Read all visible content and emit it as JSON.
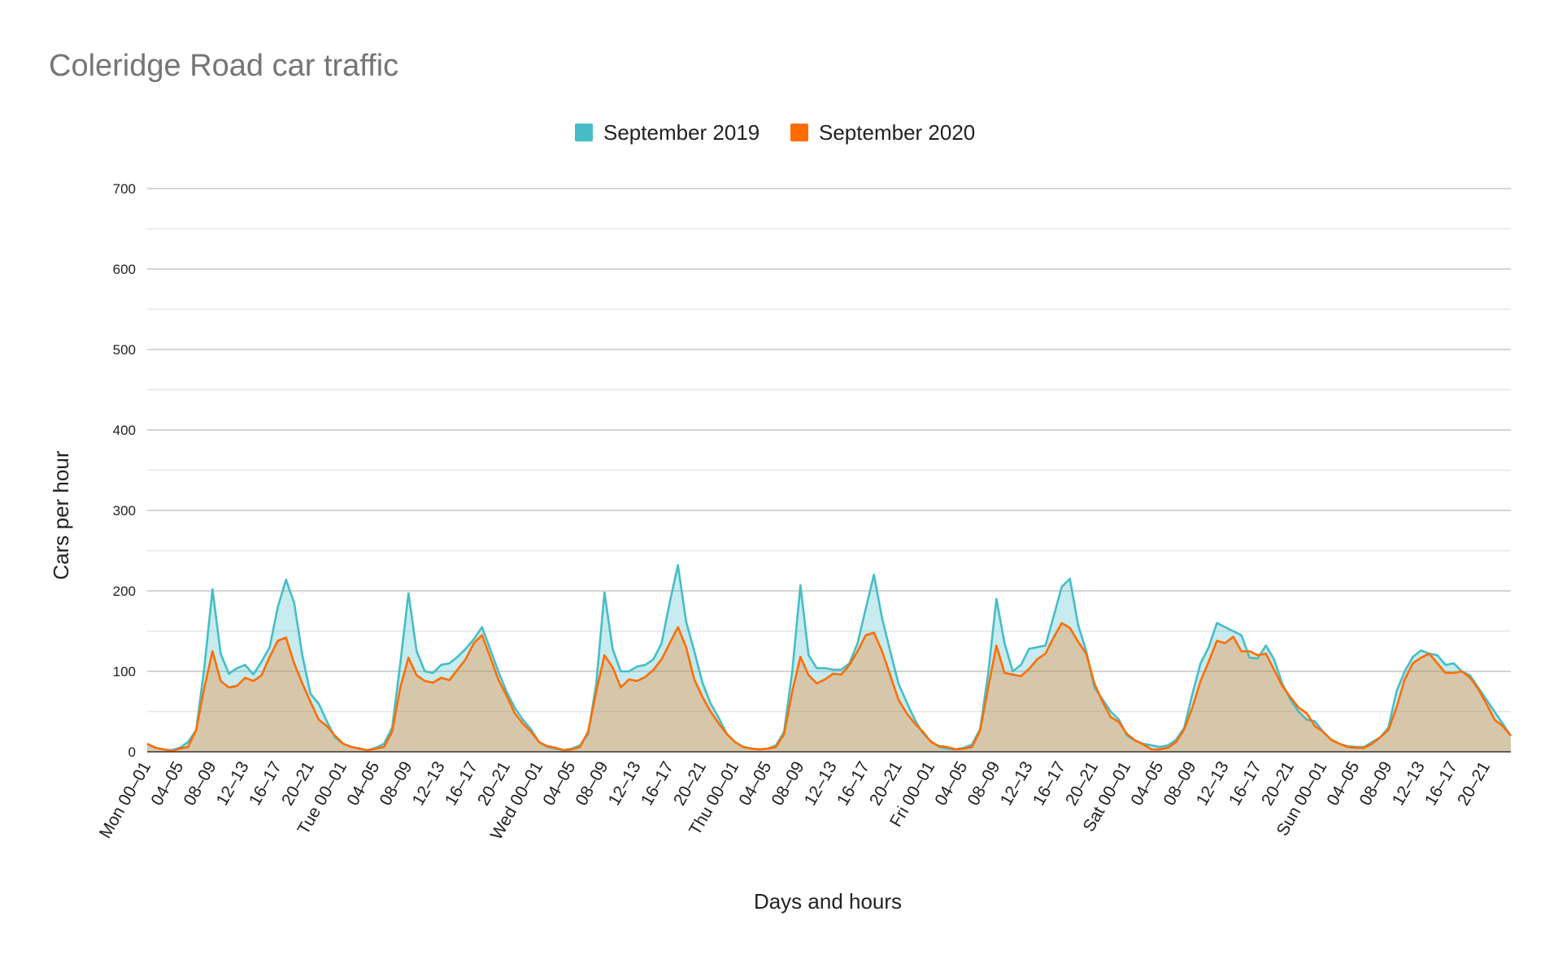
{
  "chart_data": {
    "type": "area",
    "title": "Coleridge Road car traffic",
    "xlabel": "Days and hours",
    "ylabel": "Cars per hour",
    "ylim": [
      0,
      700
    ],
    "y_major_ticks": [
      0,
      100,
      200,
      300,
      400,
      500,
      600,
      700
    ],
    "y_minor_step": 50,
    "grid": true,
    "legend_position": "top-center",
    "x_tick_labels": [
      "Mon 00–01",
      "04–05",
      "08–09",
      "12–13",
      "16–17",
      "20–21",
      "Tue 00–01",
      "04–05",
      "08–09",
      "12–13",
      "16–17",
      "20–21",
      "Wed 00–01",
      "04–05",
      "08–09",
      "12–13",
      "16–17",
      "20–21",
      "Thu 00–01",
      "04–05",
      "08–09",
      "12–13",
      "16–17",
      "20–21",
      "Fri 00–01",
      "04–05",
      "08–09",
      "12–13",
      "16–17",
      "20–21",
      "Sat 00–01",
      "04–05",
      "08–09",
      "12–13",
      "16–17",
      "20–21",
      "Sun 00–01",
      "04–05",
      "08–09",
      "12–13",
      "16–17",
      "20–21"
    ],
    "x_tick_every": 4,
    "series": [
      {
        "name": "September 2019",
        "color": "#46bdc6",
        "values": [
          10,
          5,
          3,
          2,
          5,
          12,
          27,
          105,
          202,
          122,
          97,
          104,
          108,
          96,
          112,
          130,
          180,
          214,
          185,
          120,
          72,
          60,
          38,
          18,
          10,
          6,
          4,
          2,
          5,
          10,
          30,
          110,
          197,
          125,
          100,
          98,
          108,
          110,
          118,
          128,
          140,
          155,
          128,
          100,
          75,
          55,
          40,
          28,
          12,
          6,
          4,
          2,
          4,
          8,
          22,
          85,
          198,
          128,
          100,
          100,
          106,
          108,
          115,
          135,
          186,
          232,
          162,
          125,
          86,
          60,
          42,
          22,
          12,
          6,
          4,
          3,
          4,
          8,
          25,
          100,
          207,
          120,
          104,
          104,
          102,
          102,
          110,
          135,
          178,
          220,
          166,
          125,
          85,
          62,
          40,
          23,
          13,
          6,
          4,
          3,
          5,
          9,
          28,
          98,
          190,
          135,
          100,
          108,
          128,
          130,
          132,
          168,
          205,
          215,
          158,
          125,
          80,
          65,
          50,
          40,
          20,
          14,
          10,
          8,
          6,
          8,
          15,
          30,
          72,
          110,
          130,
          160,
          155,
          150,
          145,
          117,
          116,
          132,
          115,
          85,
          65,
          50,
          40,
          38,
          25,
          15,
          10,
          7,
          6,
          6,
          12,
          18,
          30,
          75,
          100,
          118,
          126,
          122,
          120,
          108,
          110,
          100,
          95,
          80,
          65,
          50,
          35,
          20
        ]
      },
      {
        "name": "September 2020",
        "color": "#ff6d01",
        "values": [
          10,
          5,
          3,
          1,
          4,
          6,
          27,
          80,
          125,
          88,
          80,
          82,
          92,
          88,
          95,
          118,
          138,
          142,
          110,
          85,
          62,
          40,
          32,
          20,
          10,
          6,
          4,
          2,
          4,
          6,
          25,
          80,
          117,
          95,
          88,
          86,
          92,
          89,
          102,
          115,
          135,
          145,
          118,
          90,
          70,
          48,
          35,
          25,
          12,
          7,
          5,
          2,
          3,
          6,
          25,
          75,
          120,
          105,
          80,
          90,
          88,
          93,
          102,
          115,
          135,
          155,
          130,
          90,
          68,
          50,
          35,
          22,
          12,
          6,
          4,
          3,
          4,
          6,
          22,
          75,
          118,
          95,
          85,
          90,
          97,
          96,
          108,
          125,
          145,
          148,
          125,
          95,
          65,
          48,
          35,
          25,
          12,
          7,
          6,
          3,
          4,
          6,
          26,
          80,
          132,
          98,
          96,
          94,
          103,
          115,
          122,
          142,
          160,
          154,
          137,
          122,
          85,
          62,
          43,
          37,
          22,
          14,
          9,
          3,
          3,
          5,
          12,
          28,
          55,
          88,
          112,
          138,
          135,
          143,
          125,
          125,
          120,
          122,
          102,
          82,
          68,
          55,
          48,
          32,
          25,
          15,
          10,
          6,
          5,
          5,
          10,
          18,
          27,
          55,
          90,
          110,
          117,
          122,
          110,
          98,
          98,
          100,
          92,
          78,
          60,
          40,
          32,
          20
        ]
      }
    ]
  }
}
